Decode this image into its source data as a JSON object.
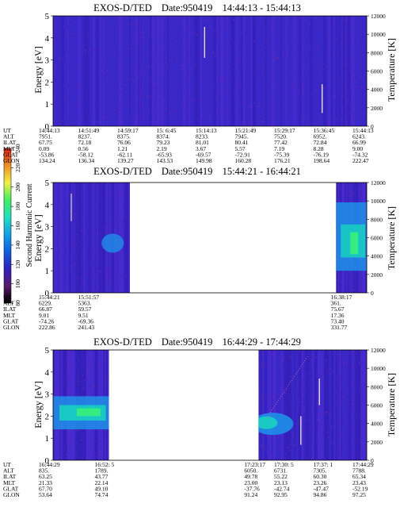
{
  "colors": {
    "background_level": "#3a27c8",
    "background_alt": "#4a2cd0",
    "speckle": "#7c2aa0",
    "mid_level": "#1e8fe8",
    "high_level": "#18d0c0",
    "peak_level": "#3af07a",
    "trace": "#ffffff"
  },
  "colorbar": {
    "label": "Second Harmonic Current",
    "ticks": [
      "80",
      "100",
      "120",
      "140",
      "160",
      "180",
      "200",
      "220",
      "240"
    ],
    "range": [
      80,
      240
    ],
    "stops": [
      "#000000",
      "#5a1a6a",
      "#3020c0",
      "#1060e0",
      "#10a0e8",
      "#20e0c0",
      "#40f060",
      "#f0f040",
      "#f09020",
      "#e02010"
    ]
  },
  "panels": [
    {
      "title": "EXOS-D/TED",
      "date": "Date:950419",
      "time_range": "14:44:13 - 15:44:13",
      "ylabel": "Energy [eV]",
      "y2label": "Temperature [K]",
      "yticks": [
        "0",
        "1",
        "2",
        "3",
        "4",
        "5"
      ],
      "y2ticks": [
        "0",
        "2000",
        "4000",
        "6000",
        "8000",
        "10000",
        "12000"
      ],
      "data_spans": [
        [
          0.0,
          1.0
        ]
      ],
      "row_labels": [
        "UT",
        "ALT",
        "ILAT",
        "MLT",
        "GLAT",
        "GLON"
      ],
      "columns": [
        {
          "UT": "14:44:13",
          "ALT": "7951.",
          "ILAT": "67.75",
          "MLT": "0.09",
          "GLAT": "-53.86",
          "GLON": "134.24"
        },
        {
          "UT": "14:51:49",
          "ALT": "8237.",
          "ILAT": "72.18",
          "MLT": "0.56",
          "GLAT": "-58.12",
          "GLON": "136.34"
        },
        {
          "UT": "14:59:17",
          "ALT": "8375.",
          "ILAT": "76.06",
          "MLT": "1.21",
          "GLAT": "-62.11",
          "GLON": "139.27"
        },
        {
          "UT": "15: 6:45",
          "ALT": "8374.",
          "ILAT": "79.23",
          "MLT": "2.19",
          "GLAT": "-65.93",
          "GLON": "143.53"
        },
        {
          "UT": "15:14:13",
          "ALT": "8233.",
          "ILAT": "81.01",
          "MLT": "3.67",
          "GLAT": "-69.57",
          "GLON": "149.98"
        },
        {
          "UT": "15:21:49",
          "ALT": "7945.",
          "ILAT": "80.41",
          "MLT": "5.57",
          "GLAT": "-72.91",
          "GLON": "160.28"
        },
        {
          "UT": "15:29:17",
          "ALT": "7520.",
          "ILAT": "77.42",
          "MLT": "7.19",
          "GLAT": "-75.39",
          "GLON": "176.21"
        },
        {
          "UT": "15:36:45",
          "ALT": "6952.",
          "ILAT": "72.84",
          "MLT": "8.28",
          "GLAT": "-76.19",
          "GLON": "198.64"
        },
        {
          "UT": "15:44:13",
          "ALT": "6243.",
          "ILAT": "66.99",
          "MLT": "9.00",
          "GLAT": "-74.32",
          "GLON": "222.47"
        }
      ]
    },
    {
      "title": "EXOS-D/TED",
      "date": "Date:950419",
      "time_range": "15:44:21 - 16:44:21",
      "ylabel": "Energy [eV]",
      "y2label": "Temperature [K]",
      "yticks": [
        "0",
        "1",
        "2",
        "3",
        "4",
        "5"
      ],
      "y2ticks": [
        "0",
        "2000",
        "4000",
        "6000",
        "8000",
        "10000",
        "12000"
      ],
      "data_spans": [
        [
          0.0,
          0.245
        ],
        [
          0.902,
          1.0
        ]
      ],
      "row_labels": [
        "UT",
        "ALT",
        "ILAT",
        "MLT",
        "GLAT",
        "GLON"
      ],
      "columns": [
        {
          "UT": "15:44:21",
          "ALT": "6229.",
          "ILAT": "66.87",
          "MLT": "9.01",
          "GLAT": "-74.26",
          "GLON": "222.86"
        },
        {
          "UT": "15:51:57",
          "ALT": "5363.",
          "ILAT": "59.57",
          "MLT": "9.51",
          "GLAT": "-69.36",
          "GLON": "241.43"
        },
        {
          "UT": "16:38:17",
          "ALT": "361.",
          "ILAT": "75.67",
          "MLT": "17.36",
          "GLAT": "73.40",
          "GLON": "331.77"
        }
      ]
    },
    {
      "title": "EXOS-D/TED",
      "date": "Date:950419",
      "time_range": "16:44:29 - 17:44:29",
      "ylabel": "Energy [eV]",
      "y2label": "Temperature [K]",
      "yticks": [
        "0",
        "1",
        "2",
        "3",
        "4",
        "5"
      ],
      "y2ticks": [
        "0",
        "2000",
        "4000",
        "6000",
        "8000",
        "10000",
        "12000"
      ],
      "data_spans": [
        [
          0.0,
          0.178
        ],
        [
          0.655,
          1.0
        ]
      ],
      "row_labels": [
        "UT",
        "ALT",
        "ILAT",
        "MLT",
        "GLAT",
        "GLON"
      ],
      "columns": [
        {
          "UT": "16:44:29",
          "ALT": "835.",
          "ILAT": "63.25",
          "MLT": "21.33",
          "GLAT": "67.70",
          "GLON": "53.64"
        },
        {
          "UT": "16:52: 5",
          "ALT": "1789.",
          "ILAT": "43.77",
          "MLT": "22.14",
          "GLAT": "49.10",
          "GLON": "74.74"
        },
        {
          "UT": "17:23:17",
          "ALT": "6050.",
          "ILAT": "49.78",
          "MLT": "23.00",
          "GLAT": "-37.76",
          "GLON": "91.24"
        },
        {
          "UT": "17:30: 5",
          "ALT": "6731.",
          "ILAT": "55.22",
          "MLT": "23.13",
          "GLAT": "-42.74",
          "GLON": "92.95"
        },
        {
          "UT": "17:37: 1",
          "ALT": "7305.",
          "ILAT": "60.30",
          "MLT": "23.26",
          "GLAT": "-47.47",
          "GLON": "94.86"
        },
        {
          "UT": "17:44:29",
          "ALT": "7788.",
          "ILAT": "65.34",
          "MLT": "23.43",
          "GLAT": "-52.19",
          "GLON": "97.25"
        }
      ]
    }
  ],
  "chart_data": [
    {
      "type": "heatmap",
      "title": "EXOS-D/TED   Date:950419   14:44:13 - 15:44:13",
      "ylabel": "Energy [eV]",
      "y2label": "Temperature [K]",
      "ylim": [
        0,
        5
      ],
      "y2lim": [
        0,
        12000
      ],
      "x": [
        "14:44:13",
        "14:51:49",
        "14:59:17",
        "15: 6:45",
        "15:14:13",
        "15:21:49",
        "15:29:17",
        "15:36:45",
        "15:44:13"
      ],
      "color_scale": [
        80,
        240
      ],
      "colorbar_label": "Second Harmonic Current"
    },
    {
      "type": "heatmap",
      "title": "EXOS-D/TED   Date:950419   15:44:21 - 16:44:21",
      "ylabel": "Energy [eV]",
      "y2label": "Temperature [K]",
      "ylim": [
        0,
        5
      ],
      "y2lim": [
        0,
        12000
      ],
      "x": [
        "15:44:21",
        "15:51:57",
        "16:38:17"
      ],
      "color_scale": [
        80,
        240
      ],
      "colorbar_label": "Second Harmonic Current"
    },
    {
      "type": "heatmap",
      "title": "EXOS-D/TED   Date:950419   16:44:29 - 17:44:29",
      "ylabel": "Energy [eV]",
      "y2label": "Temperature [K]",
      "ylim": [
        0,
        5
      ],
      "y2lim": [
        0,
        12000
      ],
      "x": [
        "16:44:29",
        "16:52: 5",
        "17:23:17",
        "17:30: 5",
        "17:37: 1",
        "17:44:29"
      ],
      "color_scale": [
        80,
        240
      ],
      "colorbar_label": "Second Harmonic Current"
    }
  ]
}
